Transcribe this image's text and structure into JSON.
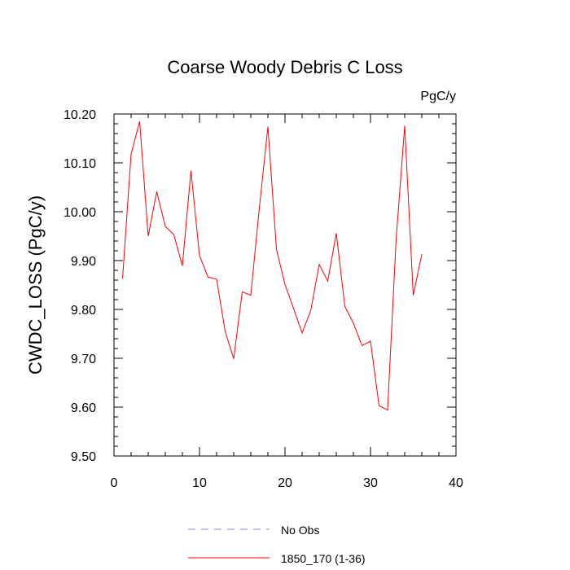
{
  "chart_data": {
    "type": "line",
    "title": "Coarse Woody Debris C Loss",
    "units_label": "PgC/y",
    "ylabel": "CWDC_LOSS  (PgC/y)",
    "xlabel": "",
    "xlim": [
      0,
      40
    ],
    "ylim": [
      9.5,
      10.2
    ],
    "x_ticks": [
      0,
      10,
      20,
      30,
      40
    ],
    "y_ticks": [
      9.5,
      9.6,
      9.7,
      9.8,
      9.9,
      10.0,
      10.1,
      10.2
    ],
    "x_tick_labels": [
      "0",
      "10",
      "20",
      "30",
      "40"
    ],
    "y_tick_labels": [
      "9.50",
      "9.60",
      "9.70",
      "9.80",
      "9.90",
      "10.00",
      "10.10",
      "10.20"
    ],
    "grid": false,
    "legend_position": "bottom",
    "series": [
      {
        "name": "No Obs",
        "color": "#8080ff",
        "dash": "dashed",
        "x": [],
        "y": []
      },
      {
        "name": "1850_170 (1-36)",
        "color": "#ff0000",
        "dash": "solid",
        "x": [
          1,
          2,
          3,
          4,
          5,
          6,
          7,
          8,
          9,
          10,
          11,
          12,
          13,
          14,
          15,
          16,
          17,
          18,
          19,
          20,
          21,
          22,
          23,
          24,
          25,
          26,
          27,
          28,
          29,
          30,
          31,
          32,
          33,
          34,
          35,
          36
        ],
        "y": [
          9.863,
          10.118,
          10.185,
          9.95,
          10.041,
          9.97,
          9.953,
          9.889,
          10.084,
          9.91,
          9.866,
          9.862,
          9.755,
          9.699,
          9.836,
          9.829,
          10.008,
          10.174,
          9.923,
          9.851,
          9.802,
          9.752,
          9.797,
          9.892,
          9.858,
          9.956,
          9.806,
          9.772,
          9.726,
          9.735,
          9.603,
          9.594,
          9.944,
          10.176,
          9.829,
          9.913
        ]
      }
    ]
  }
}
